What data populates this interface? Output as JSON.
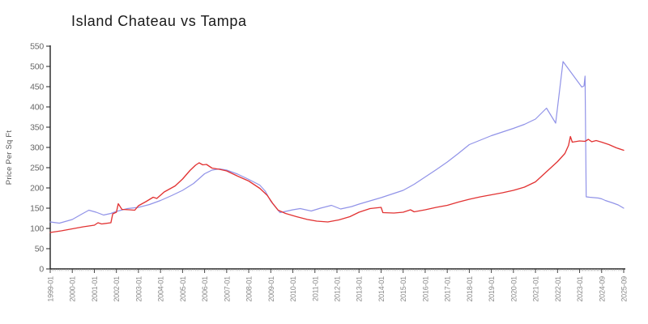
{
  "page_title": "Island Chateau vs Tampa",
  "chart_data": {
    "type": "line",
    "title": "Island Chateau vs Tampa",
    "xlabel": "",
    "ylabel": "Price Per Sq Ft",
    "ylim": [
      0,
      550
    ],
    "yticks": [
      0,
      50,
      100,
      150,
      200,
      250,
      300,
      350,
      400,
      450,
      500,
      550
    ],
    "xticks": [
      "1999-01",
      "2000-01",
      "2001-01",
      "2002-01",
      "2003-01",
      "2004-01",
      "2005-01",
      "2006-01",
      "2007-01",
      "2008-01",
      "2009-01",
      "2010-01",
      "2011-01",
      "2012-01",
      "2013-01",
      "2014-01",
      "2015-01",
      "2016-01",
      "2017-01",
      "2018-01",
      "2019-01",
      "2020-01",
      "2021-01",
      "2022-01",
      "2023-01",
      "2024-09",
      "2025-09"
    ],
    "x_start": "1999-01",
    "x_end": "2025-09",
    "grid": false,
    "legend_position": "none",
    "axis_color": "#222222",
    "series": [
      {
        "name": "blue",
        "color": "#9193e8",
        "width": 1.2,
        "points": [
          [
            "1999-01",
            116
          ],
          [
            "1999-06",
            113
          ],
          [
            "2000-01",
            122
          ],
          [
            "2000-06",
            135
          ],
          [
            "2000-10",
            145
          ],
          [
            "2001-02",
            140
          ],
          [
            "2001-06",
            133
          ],
          [
            "2001-10",
            137
          ],
          [
            "2002-01",
            142
          ],
          [
            "2002-07",
            149
          ],
          [
            "2003-01",
            152
          ],
          [
            "2003-07",
            159
          ],
          [
            "2004-01",
            169
          ],
          [
            "2004-07",
            181
          ],
          [
            "2005-01",
            194
          ],
          [
            "2005-07",
            211
          ],
          [
            "2006-01",
            235
          ],
          [
            "2006-05",
            244
          ],
          [
            "2006-09",
            247
          ],
          [
            "2007-01",
            244
          ],
          [
            "2007-07",
            234
          ],
          [
            "2008-01",
            221
          ],
          [
            "2008-07",
            207
          ],
          [
            "2008-10",
            192
          ],
          [
            "2009-01",
            167
          ],
          [
            "2009-06",
            139
          ],
          [
            "2010-01",
            146
          ],
          [
            "2010-05",
            149
          ],
          [
            "2010-11",
            143
          ],
          [
            "2011-04",
            150
          ],
          [
            "2011-10",
            157
          ],
          [
            "2012-03",
            148
          ],
          [
            "2012-09",
            154
          ],
          [
            "2013-01",
            160
          ],
          [
            "2013-07",
            168
          ],
          [
            "2014-01",
            176
          ],
          [
            "2014-07",
            185
          ],
          [
            "2015-01",
            194
          ],
          [
            "2015-07",
            209
          ],
          [
            "2016-01",
            227
          ],
          [
            "2016-07",
            245
          ],
          [
            "2017-01",
            264
          ],
          [
            "2017-07",
            285
          ],
          [
            "2018-01",
            307
          ],
          [
            "2018-07",
            318
          ],
          [
            "2019-01",
            329
          ],
          [
            "2019-07",
            338
          ],
          [
            "2020-01",
            347
          ],
          [
            "2020-07",
            357
          ],
          [
            "2021-01",
            370
          ],
          [
            "2021-07",
            397
          ],
          [
            "2021-12",
            360
          ],
          [
            "2022-04",
            512
          ],
          [
            "2023-03",
            449
          ],
          [
            "2023-05",
            452
          ],
          [
            "2023-06",
            476
          ],
          [
            "2023-07",
            178
          ],
          [
            "2023-10",
            177
          ],
          [
            "2024-06",
            175
          ],
          [
            "2024-09",
            173
          ],
          [
            "2024-11",
            169
          ],
          [
            "2025-03",
            163
          ],
          [
            "2025-06",
            158
          ],
          [
            "2025-09",
            150
          ]
        ]
      },
      {
        "name": "red",
        "color": "#e23333",
        "width": 1.35,
        "points": [
          [
            "1999-01",
            90
          ],
          [
            "1999-07",
            94
          ],
          [
            "2000-01",
            99
          ],
          [
            "2000-07",
            104
          ],
          [
            "2001-01",
            108
          ],
          [
            "2001-03",
            114
          ],
          [
            "2001-05",
            111
          ],
          [
            "2001-10",
            114
          ],
          [
            "2001-11",
            136
          ],
          [
            "2002-01",
            140
          ],
          [
            "2002-02",
            161
          ],
          [
            "2002-04",
            147
          ],
          [
            "2002-08",
            146
          ],
          [
            "2002-11",
            145
          ],
          [
            "2003-01",
            156
          ],
          [
            "2003-05",
            166
          ],
          [
            "2003-09",
            177
          ],
          [
            "2003-11",
            174
          ],
          [
            "2004-03",
            190
          ],
          [
            "2004-09",
            205
          ],
          [
            "2005-01",
            222
          ],
          [
            "2005-05",
            243
          ],
          [
            "2005-08",
            256
          ],
          [
            "2005-10",
            262
          ],
          [
            "2005-12",
            257
          ],
          [
            "2006-02",
            258
          ],
          [
            "2006-05",
            249
          ],
          [
            "2006-09",
            246
          ],
          [
            "2007-01",
            242
          ],
          [
            "2007-07",
            229
          ],
          [
            "2008-01",
            217
          ],
          [
            "2008-07",
            199
          ],
          [
            "2008-11",
            182
          ],
          [
            "2009-02",
            162
          ],
          [
            "2009-05",
            145
          ],
          [
            "2009-09",
            137
          ],
          [
            "2010-03",
            129
          ],
          [
            "2010-09",
            122
          ],
          [
            "2011-02",
            118
          ],
          [
            "2011-08",
            116
          ],
          [
            "2012-02",
            121
          ],
          [
            "2012-08",
            129
          ],
          [
            "2013-01",
            140
          ],
          [
            "2013-07",
            149
          ],
          [
            "2014-01",
            152
          ],
          [
            "2014-02",
            139
          ],
          [
            "2014-08",
            138
          ],
          [
            "2015-01",
            140
          ],
          [
            "2015-05",
            146
          ],
          [
            "2015-07",
            141
          ],
          [
            "2016-01",
            146
          ],
          [
            "2016-07",
            152
          ],
          [
            "2017-01",
            157
          ],
          [
            "2017-07",
            165
          ],
          [
            "2018-01",
            172
          ],
          [
            "2018-07",
            178
          ],
          [
            "2019-01",
            183
          ],
          [
            "2019-07",
            188
          ],
          [
            "2020-01",
            194
          ],
          [
            "2020-07",
            202
          ],
          [
            "2021-01",
            215
          ],
          [
            "2021-07",
            240
          ],
          [
            "2022-01",
            265
          ],
          [
            "2022-05",
            285
          ],
          [
            "2022-07",
            305
          ],
          [
            "2022-08",
            327
          ],
          [
            "2022-09",
            313
          ],
          [
            "2023-01",
            316
          ],
          [
            "2023-06",
            315
          ],
          [
            "2023-09",
            320
          ],
          [
            "2023-12",
            314
          ],
          [
            "2024-04",
            317
          ],
          [
            "2024-09",
            313
          ],
          [
            "2025-01",
            307
          ],
          [
            "2025-05",
            299
          ],
          [
            "2025-09",
            293
          ]
        ]
      }
    ]
  }
}
